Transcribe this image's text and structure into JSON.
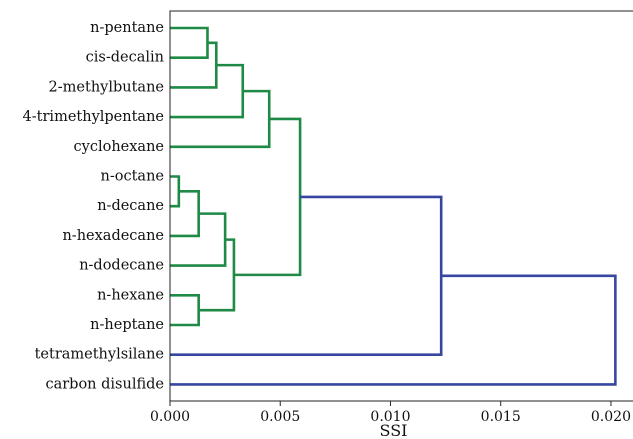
{
  "chart_data": {
    "type": "dendrogram",
    "title": "",
    "xlabel": "SSI",
    "ylabel": "",
    "xlim": [
      0.0,
      0.021
    ],
    "xticks": [
      0.0,
      0.005,
      0.01,
      0.015,
      0.02
    ],
    "xtick_labels": [
      "0.000",
      "0.005",
      "0.010",
      "0.015",
      "0.020"
    ],
    "grid": false,
    "leaves": [
      "n-pentane",
      "cis-decalin",
      "2-methylbutane",
      "4-trimethylpentane",
      "cyclohexane",
      "n-octane",
      "n-decane",
      "n-hexadecane",
      "n-dodecane",
      "n-hexane",
      "n-heptane",
      "tetramethylsilane",
      "carbon disulfide"
    ],
    "colors": {
      "cluster_1": "#1e8a46",
      "above_threshold": "#3747a0"
    },
    "merges": [
      {
        "left": "leaf:0",
        "right": "leaf:1",
        "distance": 0.0017,
        "color": "cluster_1"
      },
      {
        "left": "node:0",
        "right": "leaf:2",
        "distance": 0.0021,
        "color": "cluster_1"
      },
      {
        "left": "node:1",
        "right": "leaf:3",
        "distance": 0.0033,
        "color": "cluster_1"
      },
      {
        "left": "node:2",
        "right": "leaf:4",
        "distance": 0.0045,
        "color": "cluster_1"
      },
      {
        "left": "leaf:5",
        "right": "leaf:6",
        "distance": 0.0004,
        "color": "cluster_1"
      },
      {
        "left": "node:4",
        "right": "leaf:7",
        "distance": 0.0013,
        "color": "cluster_1"
      },
      {
        "left": "node:5",
        "right": "leaf:8",
        "distance": 0.0025,
        "color": "cluster_1"
      },
      {
        "left": "leaf:9",
        "right": "leaf:10",
        "distance": 0.0013,
        "color": "cluster_1"
      },
      {
        "left": "node:6",
        "right": "node:7",
        "distance": 0.0029,
        "color": "cluster_1"
      },
      {
        "left": "node:3",
        "right": "node:8",
        "distance": 0.0059,
        "color": "cluster_1"
      },
      {
        "left": "node:9",
        "right": "leaf:11",
        "distance": 0.0123,
        "color": "above_threshold"
      },
      {
        "left": "node:10",
        "right": "leaf:12",
        "distance": 0.0202,
        "color": "above_threshold"
      }
    ]
  }
}
